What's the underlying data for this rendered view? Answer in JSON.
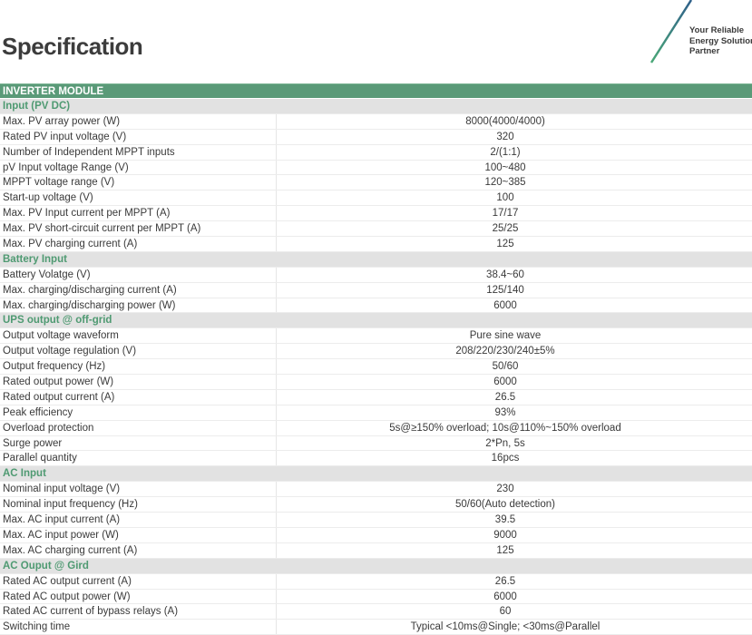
{
  "header": {
    "title": "Specification",
    "tagline": [
      "Your Reliable",
      "Energy Solution",
      "Partner"
    ],
    "accent": "#5a9a78"
  },
  "module": "INVERTER MODULE",
  "sections": [
    {
      "title": "Input (PV DC)",
      "rows": [
        [
          "Max. PV array power (W)",
          "8000(4000/4000)"
        ],
        [
          "Rated PV input voltage (V)",
          "320"
        ],
        [
          "Number of Independent MPPT inputs",
          "2/(1:1)"
        ],
        [
          "pV Input voltage Range (V)",
          "100~480"
        ],
        [
          "MPPT voltage range (V)",
          "120~385"
        ],
        [
          "Start-up voltage (V)",
          "100"
        ],
        [
          "Max. PV Input current per MPPT (A)",
          "17/17"
        ],
        [
          "Max. PV short-circuit current per MPPT (A)",
          "25/25"
        ],
        [
          "Max. PV charging current (A)",
          "125"
        ]
      ]
    },
    {
      "title": "Battery Input",
      "rows": [
        [
          "Battery Volatge (V)",
          "38.4~60"
        ],
        [
          "Max. charging/discharging current (A)",
          "125/140"
        ],
        [
          "Max. charging/discharging power (W)",
          "6000"
        ]
      ]
    },
    {
      "title": "UPS output @ off-grid",
      "rows": [
        [
          "Output voltage waveform",
          "Pure sine wave"
        ],
        [
          "Output voltage regulation (V)",
          "208/220/230/240±5%"
        ],
        [
          "Output frequency (Hz)",
          "50/60"
        ],
        [
          "Rated output power (W)",
          "6000"
        ],
        [
          "Rated output current (A)",
          "26.5"
        ],
        [
          "Peak efficiency",
          "93%"
        ],
        [
          "Overload protection",
          "5s@≥150% overload; 10s@110%~150% overload"
        ],
        [
          "Surge power",
          "2*Pn, 5s"
        ],
        [
          "Parallel quantity",
          "16pcs"
        ]
      ]
    },
    {
      "title": "AC Input",
      "rows": [
        [
          "Nominal input voltage (V)",
          "230"
        ],
        [
          "Nominal input frequency (Hz)",
          "50/60(Auto detection)"
        ],
        [
          "Max. AC input current (A)",
          "39.5"
        ],
        [
          "Max. AC input power (W)",
          "9000"
        ],
        [
          "Max. AC charging current (A)",
          "125"
        ]
      ]
    },
    {
      "title": "AC Ouput @ Gird",
      "rows": [
        [
          "Rated AC output current (A)",
          "26.5"
        ],
        [
          "Rated AC output power (W)",
          "6000"
        ],
        [
          "Rated AC current of bypass relays (A)",
          "60"
        ],
        [
          "Switching time",
          "Typical <10ms@Single; <30ms@Parallel"
        ]
      ]
    }
  ]
}
